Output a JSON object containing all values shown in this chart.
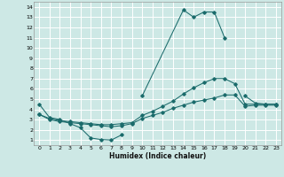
{
  "xlabel": "Humidex (Indice chaleur)",
  "background_color": "#cde8e5",
  "grid_color": "#ffffff",
  "line_color": "#1a6b6b",
  "xlim": [
    -0.5,
    23.5
  ],
  "ylim": [
    0.5,
    14.5
  ],
  "xticks": [
    0,
    1,
    2,
    3,
    4,
    5,
    6,
    7,
    8,
    9,
    10,
    11,
    12,
    13,
    14,
    15,
    16,
    17,
    18,
    19,
    20,
    21,
    22,
    23
  ],
  "yticks": [
    1,
    2,
    3,
    4,
    5,
    6,
    7,
    8,
    9,
    10,
    11,
    12,
    13,
    14
  ],
  "series": [
    {
      "segments": [
        {
          "x": [
            0,
            1,
            2,
            3,
            4,
            5,
            6,
            7,
            8
          ],
          "y": [
            4.5,
            3.2,
            3.0,
            2.6,
            2.2,
            1.2,
            1.05,
            1.0,
            1.5
          ]
        },
        {
          "x": [
            10,
            14,
            15,
            16,
            17,
            18
          ],
          "y": [
            5.3,
            13.7,
            13.0,
            13.5,
            13.5,
            11.0
          ]
        },
        {
          "x": [
            20,
            21,
            22,
            23
          ],
          "y": [
            5.3,
            4.6,
            4.5,
            4.5
          ]
        }
      ]
    },
    {
      "segments": [
        {
          "x": [
            0,
            1,
            2,
            3,
            4,
            5,
            6,
            7,
            8,
            9,
            10,
            11,
            12,
            13,
            14,
            15,
            16,
            17,
            18,
            19,
            20,
            21,
            22,
            23
          ],
          "y": [
            3.5,
            3.1,
            2.9,
            2.8,
            2.7,
            2.6,
            2.5,
            2.5,
            2.6,
            2.7,
            3.4,
            3.8,
            4.3,
            4.8,
            5.5,
            6.1,
            6.6,
            7.0,
            7.0,
            6.5,
            4.5,
            4.5,
            4.5,
            4.5
          ]
        }
      ]
    },
    {
      "segments": [
        {
          "x": [
            0,
            1,
            2,
            3,
            4,
            5,
            6,
            7,
            8,
            9,
            10,
            11,
            12,
            13,
            14,
            15,
            16,
            17,
            18,
            19,
            20,
            21,
            22,
            23
          ],
          "y": [
            3.5,
            3.0,
            2.8,
            2.7,
            2.6,
            2.5,
            2.4,
            2.3,
            2.4,
            2.6,
            3.1,
            3.4,
            3.7,
            4.1,
            4.4,
            4.7,
            4.9,
            5.1,
            5.4,
            5.4,
            4.3,
            4.4,
            4.4,
            4.4
          ]
        }
      ]
    }
  ]
}
